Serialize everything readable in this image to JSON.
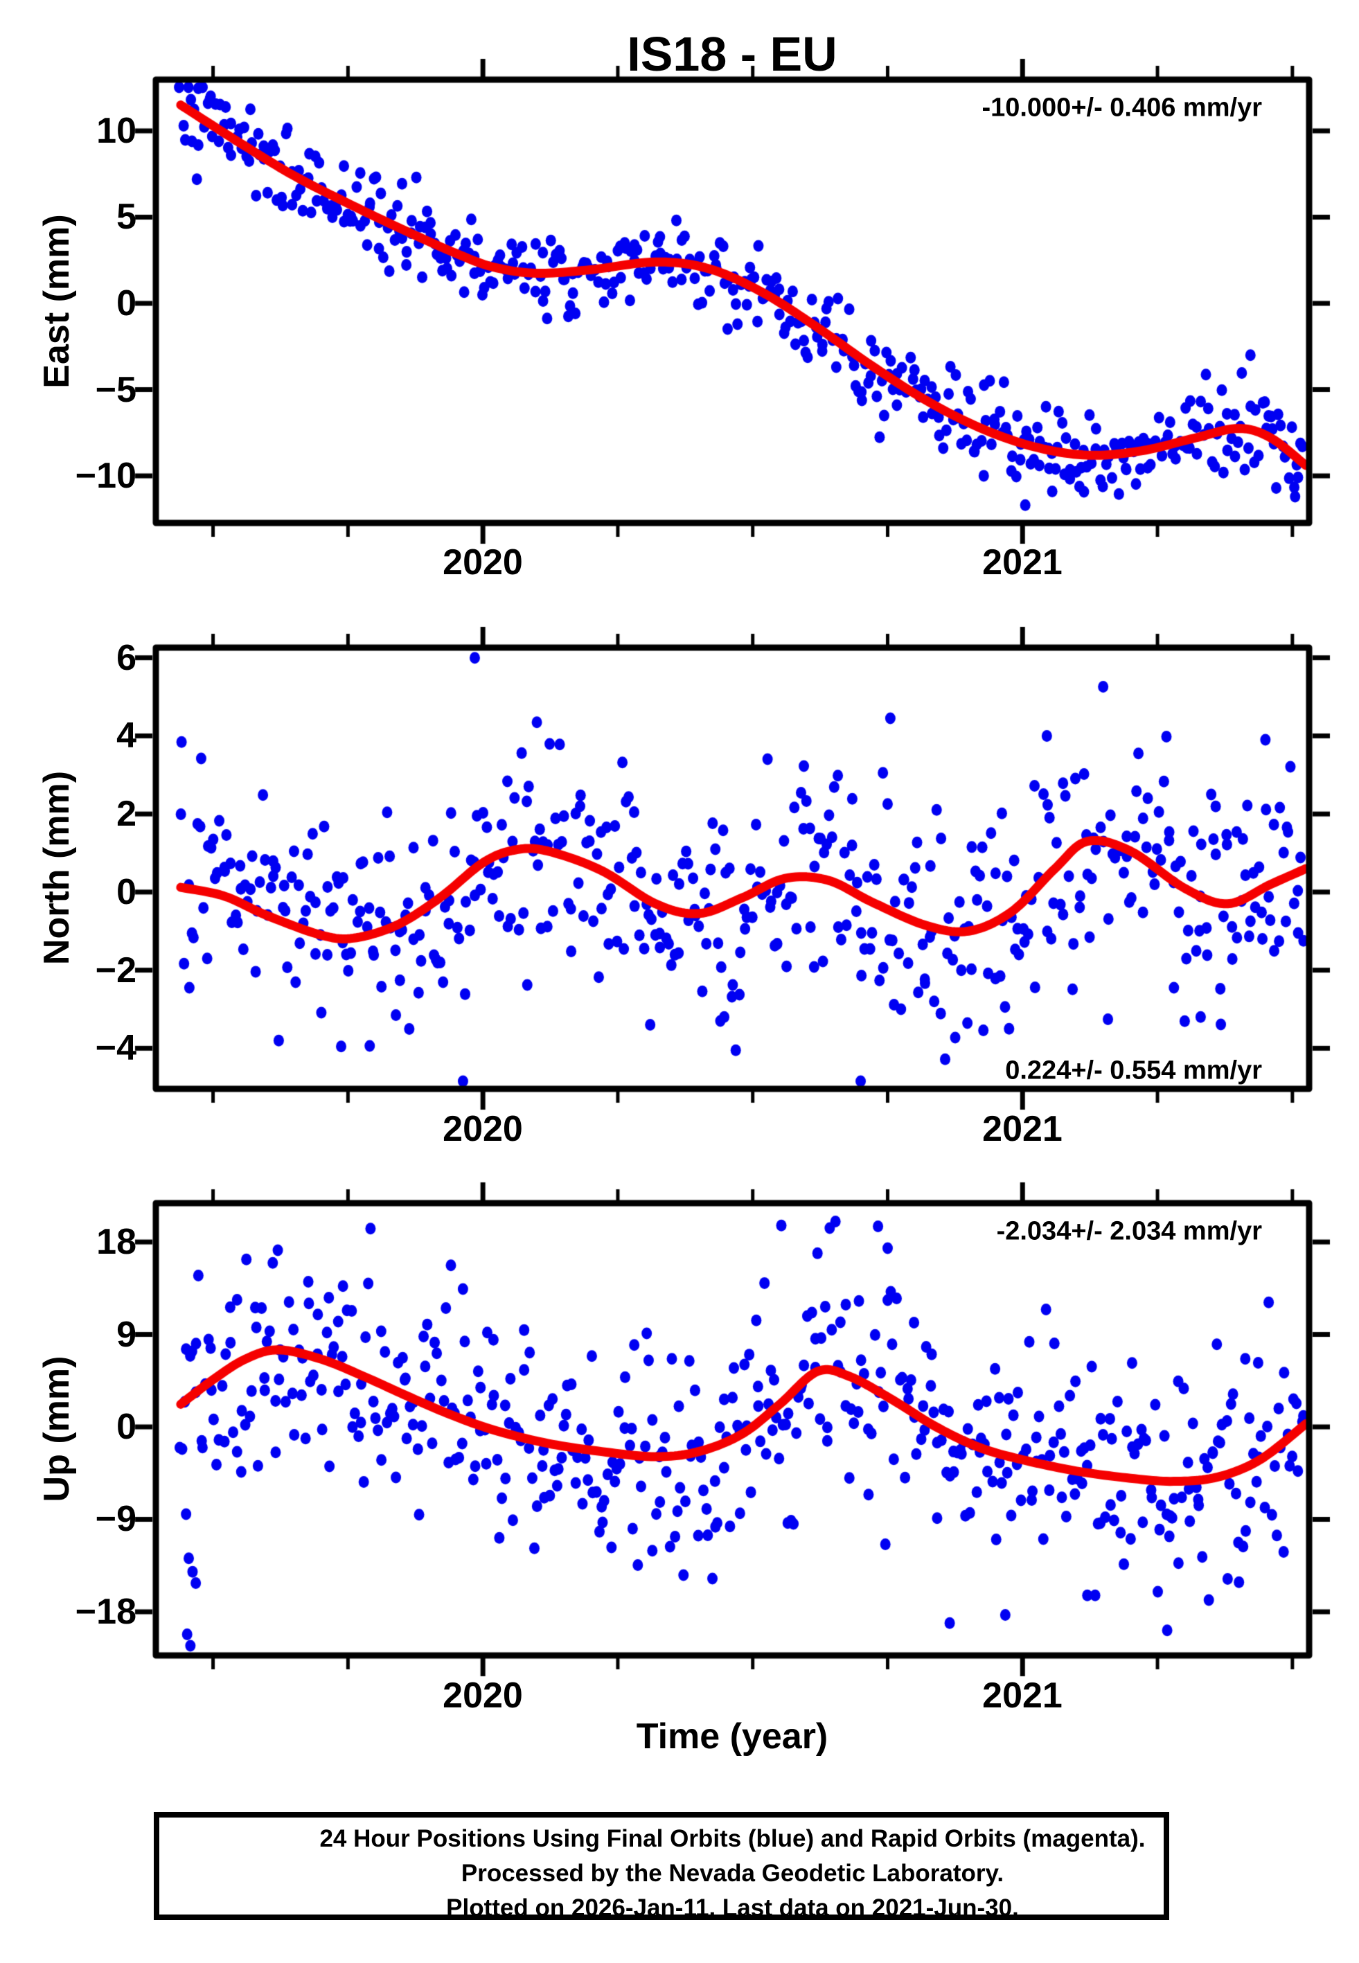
{
  "title": "IS18 - EU",
  "xlabel": "Time (year)",
  "footer": {
    "line1": "24 Hour Positions Using Final Orbits (blue) and Rapid Orbits (magenta).",
    "line2": "Processed by the Nevada Geodetic Laboratory.",
    "line3": "Plotted on 2026-Jan-11. Last data on 2021-Jun-30."
  },
  "chart_data": {
    "type": "scatter",
    "title": "IS18 - EU",
    "xlabel": "Time (year)",
    "x_range": [
      2019.394,
      2021.531
    ],
    "x_major_ticks": [
      2020,
      2021
    ],
    "x_major_labels": [
      "2020",
      "2021"
    ],
    "x_minor_ticks": [
      2019.5,
      2019.75,
      2020.25,
      2020.5,
      2020.75,
      2021.25,
      2021.5
    ],
    "legend": "blue dots = daily 24h positions, red curve = model fit",
    "colors": {
      "points": "#0000f2",
      "fit": "#f50000",
      "frame": "#000000"
    },
    "panels": [
      {
        "name": "east",
        "ylabel": "East (mm)",
        "annotation": "-10.000+/- 0.406 mm/yr",
        "annotation_pos": "top",
        "rate_mm_per_yr": -10.0,
        "rate_sigma_mm_per_yr": 0.406,
        "y_range": [
          -12.73,
          12.97
        ],
        "y_ticks": [
          10,
          5,
          0,
          -5,
          -10
        ],
        "y_tick_labels": [
          "10",
          "5",
          "0",
          "−5",
          "−10"
        ],
        "scatter_sigma_mm": 1.25,
        "n_points": 480,
        "seed": 7,
        "trend": [
          [
            2019.44,
            11.5
          ],
          [
            2019.55,
            9.3
          ],
          [
            2019.65,
            7.4
          ],
          [
            2019.75,
            5.8
          ],
          [
            2019.85,
            4.3
          ],
          [
            2019.95,
            2.9
          ],
          [
            2020.02,
            2.1
          ],
          [
            2020.1,
            1.75
          ],
          [
            2020.2,
            1.95
          ],
          [
            2020.32,
            2.4
          ],
          [
            2020.42,
            2.0
          ],
          [
            2020.52,
            0.6
          ],
          [
            2020.62,
            -1.4
          ],
          [
            2020.72,
            -3.6
          ],
          [
            2020.82,
            -5.6
          ],
          [
            2020.92,
            -7.2
          ],
          [
            2021.02,
            -8.3
          ],
          [
            2021.12,
            -8.8
          ],
          [
            2021.22,
            -8.55
          ],
          [
            2021.32,
            -7.8
          ],
          [
            2021.4,
            -7.25
          ],
          [
            2021.46,
            -7.8
          ],
          [
            2021.525,
            -9.4
          ]
        ],
        "outliers": [
          [
            2021.005,
            -11.7
          ],
          [
            2021.055,
            -10.9
          ],
          [
            2021.47,
            -10.7
          ],
          [
            2021.505,
            -11.2
          ],
          [
            2019.47,
            7.2
          ]
        ]
      },
      {
        "name": "north",
        "ylabel": "North (mm)",
        "annotation": "0.224+/- 0.554 mm/yr",
        "annotation_pos": "bottom",
        "rate_mm_per_yr": 0.224,
        "rate_sigma_mm_per_yr": 0.554,
        "y_range": [
          -5.04,
          6.26
        ],
        "y_ticks": [
          6,
          4,
          2,
          0,
          -2,
          -4
        ],
        "y_tick_labels": [
          "6",
          "4",
          "2",
          "0",
          "−2",
          "−4"
        ],
        "scatter_sigma_mm": 1.45,
        "n_points": 480,
        "seed": 13,
        "trend": [
          [
            2019.44,
            0.12
          ],
          [
            2019.52,
            -0.1
          ],
          [
            2019.6,
            -0.6
          ],
          [
            2019.7,
            -1.1
          ],
          [
            2019.76,
            -1.18
          ],
          [
            2019.84,
            -0.85
          ],
          [
            2019.92,
            -0.15
          ],
          [
            2020.0,
            0.75
          ],
          [
            2020.06,
            1.08
          ],
          [
            2020.12,
            1.05
          ],
          [
            2020.22,
            0.55
          ],
          [
            2020.32,
            -0.3
          ],
          [
            2020.4,
            -0.55
          ],
          [
            2020.48,
            -0.15
          ],
          [
            2020.56,
            0.35
          ],
          [
            2020.64,
            0.3
          ],
          [
            2020.72,
            -0.25
          ],
          [
            2020.82,
            -0.85
          ],
          [
            2020.9,
            -1.0
          ],
          [
            2020.98,
            -0.5
          ],
          [
            2021.06,
            0.6
          ],
          [
            2021.12,
            1.3
          ],
          [
            2021.2,
            1.05
          ],
          [
            2021.3,
            0.1
          ],
          [
            2021.38,
            -0.3
          ],
          [
            2021.46,
            0.2
          ],
          [
            2021.525,
            0.6
          ]
        ],
        "outliers": [
          [
            2019.985,
            6.0
          ],
          [
            2020.7,
            -4.85
          ],
          [
            2020.1,
            4.35
          ],
          [
            2020.755,
            4.45
          ],
          [
            2021.045,
            4.0
          ],
          [
            2021.45,
            3.9
          ],
          [
            2020.31,
            -3.4
          ],
          [
            2020.44,
            -3.3
          ],
          [
            2020.975,
            -3.5
          ],
          [
            2021.33,
            -3.2
          ]
        ]
      },
      {
        "name": "up",
        "ylabel": "Up (mm)",
        "annotation": "-2.034+/- 2.034 mm/yr",
        "annotation_pos": "top",
        "rate_mm_per_yr": -2.034,
        "rate_sigma_mm_per_yr": 2.034,
        "y_range": [
          -22.25,
          21.78
        ],
        "y_ticks": [
          18,
          9,
          0,
          -9,
          -18
        ],
        "y_tick_labels": [
          "18",
          "9",
          "0",
          "−9",
          "−18"
        ],
        "scatter_sigma_mm": 5.6,
        "n_points": 490,
        "seed": 29,
        "trend": [
          [
            2019.44,
            2.2
          ],
          [
            2019.5,
            4.6
          ],
          [
            2019.56,
            6.6
          ],
          [
            2019.62,
            7.5
          ],
          [
            2019.7,
            6.6
          ],
          [
            2019.78,
            4.9
          ],
          [
            2019.86,
            3.0
          ],
          [
            2019.94,
            1.2
          ],
          [
            2020.02,
            -0.3
          ],
          [
            2020.12,
            -1.6
          ],
          [
            2020.22,
            -2.4
          ],
          [
            2020.32,
            -2.9
          ],
          [
            2020.4,
            -2.4
          ],
          [
            2020.48,
            -0.7
          ],
          [
            2020.55,
            2.2
          ],
          [
            2020.62,
            5.4
          ],
          [
            2020.68,
            4.9
          ],
          [
            2020.76,
            2.6
          ],
          [
            2020.84,
            0.0
          ],
          [
            2020.92,
            -2.0
          ],
          [
            2021.0,
            -3.2
          ],
          [
            2021.1,
            -4.3
          ],
          [
            2021.2,
            -5.0
          ],
          [
            2021.28,
            -5.3
          ],
          [
            2021.36,
            -4.9
          ],
          [
            2021.44,
            -3.2
          ],
          [
            2021.525,
            0.3
          ]
        ],
        "outliers": [
          [
            2019.452,
            -20.2
          ],
          [
            2019.458,
            -21.3
          ],
          [
            2019.455,
            -12.8
          ],
          [
            2019.462,
            -14.1
          ],
          [
            2019.468,
            -15.2
          ],
          [
            2019.45,
            -8.5
          ],
          [
            2020.553,
            19.6
          ],
          [
            2020.865,
            -19.1
          ],
          [
            2021.268,
            -19.8
          ],
          [
            2020.968,
            -18.3
          ],
          [
            2021.12,
            -16.4
          ],
          [
            2021.38,
            -14.8
          ],
          [
            2019.62,
            17.2
          ],
          [
            2020.62,
            16.9
          ],
          [
            2020.75,
            17.4
          ]
        ]
      }
    ]
  }
}
